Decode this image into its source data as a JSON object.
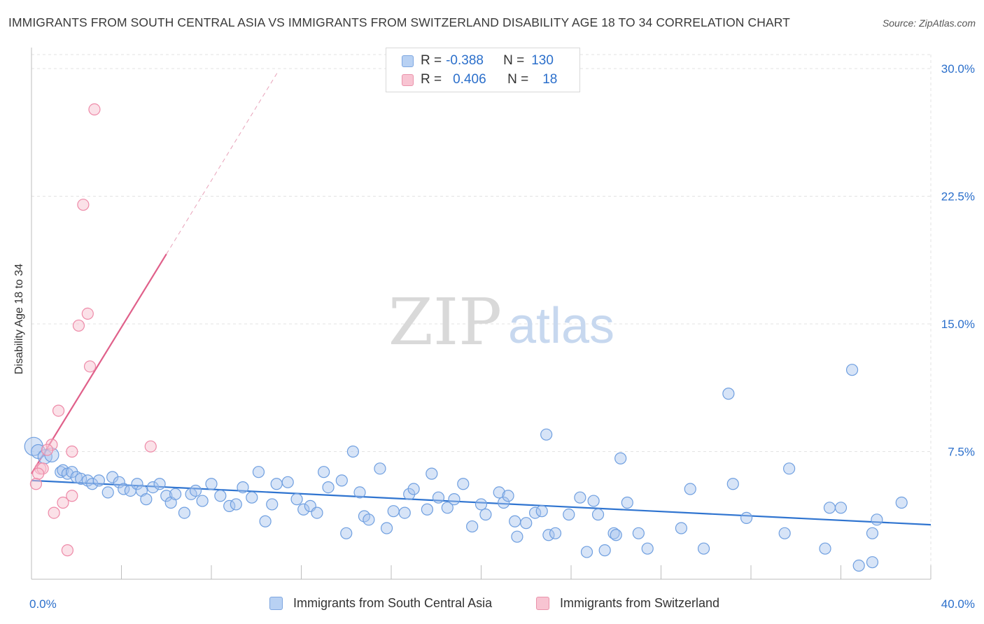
{
  "header": {
    "title": "IMMIGRANTS FROM SOUTH CENTRAL ASIA VS IMMIGRANTS FROM SWITZERLAND DISABILITY AGE 18 TO 34 CORRELATION CHART",
    "source": "Source: ZipAtlas.com"
  },
  "watermark": {
    "zip": "ZIP",
    "atlas": "atlas"
  },
  "legend": {
    "series": [
      {
        "r_label": "R =",
        "r_value": "-0.388",
        "n_label": "N =",
        "n_value": "130"
      },
      {
        "r_label": "R =",
        "r_value": "0.406",
        "n_label": "N =",
        "n_value": "18"
      }
    ]
  },
  "chart_data": {
    "type": "scatter",
    "title": "IMMIGRANTS FROM SOUTH CENTRAL ASIA VS IMMIGRANTS FROM SWITZERLAND DISABILITY AGE 18 TO 34 CORRELATION CHART",
    "xlabel": "",
    "ylabel": "Disability Age 18 to 34",
    "xlim": [
      0,
      40
    ],
    "ylim": [
      0,
      30
    ],
    "x_tick_labels": [
      "0.0%",
      "40.0%"
    ],
    "y_ticks": [
      7.5,
      15.0,
      22.5,
      30.0
    ],
    "y_tick_labels": [
      "7.5%",
      "15.0%",
      "22.5%",
      "30.0%"
    ],
    "grid": true,
    "legend_position": "bottom",
    "colors": {
      "blue": "#6f9fe0",
      "blue_line": "#2f74d0",
      "pink": "#ee8aa8",
      "pink_line": "#e0608a",
      "tick_text": "#2b6fcb"
    },
    "series": [
      {
        "name": "Immigrants from South Central Asia",
        "color": "#6f9fe0",
        "trend": [
          [
            0,
            5.8
          ],
          [
            40,
            3.2
          ]
        ],
        "points": [
          [
            0.1,
            7.8
          ],
          [
            0.3,
            7.5
          ],
          [
            0.6,
            7.2
          ],
          [
            0.9,
            7.3
          ],
          [
            1.3,
            6.3
          ],
          [
            1.4,
            6.4
          ],
          [
            1.6,
            6.2
          ],
          [
            1.8,
            6.3
          ],
          [
            2.0,
            6.0
          ],
          [
            2.2,
            5.9
          ],
          [
            2.5,
            5.8
          ],
          [
            2.7,
            5.6
          ],
          [
            3.0,
            5.8
          ],
          [
            3.4,
            5.1
          ],
          [
            3.6,
            6.0
          ],
          [
            3.9,
            5.7
          ],
          [
            4.1,
            5.3
          ],
          [
            4.4,
            5.2
          ],
          [
            4.7,
            5.6
          ],
          [
            4.9,
            5.2
          ],
          [
            5.1,
            4.7
          ],
          [
            5.4,
            5.4
          ],
          [
            5.7,
            5.6
          ],
          [
            6.0,
            4.9
          ],
          [
            6.2,
            4.5
          ],
          [
            6.4,
            5.0
          ],
          [
            6.8,
            3.9
          ],
          [
            7.1,
            5.0
          ],
          [
            7.3,
            5.2
          ],
          [
            7.6,
            4.6
          ],
          [
            8.0,
            5.6
          ],
          [
            8.4,
            4.9
          ],
          [
            8.8,
            4.3
          ],
          [
            9.1,
            4.4
          ],
          [
            9.4,
            5.4
          ],
          [
            9.8,
            4.8
          ],
          [
            10.1,
            6.3
          ],
          [
            10.4,
            3.4
          ],
          [
            10.7,
            4.4
          ],
          [
            10.9,
            5.6
          ],
          [
            11.4,
            5.7
          ],
          [
            11.8,
            4.7
          ],
          [
            12.1,
            4.1
          ],
          [
            12.4,
            4.3
          ],
          [
            12.7,
            3.9
          ],
          [
            13.0,
            6.3
          ],
          [
            13.2,
            5.4
          ],
          [
            13.8,
            5.8
          ],
          [
            14.0,
            2.7
          ],
          [
            14.3,
            7.5
          ],
          [
            14.6,
            5.1
          ],
          [
            14.8,
            3.7
          ],
          [
            15.0,
            3.5
          ],
          [
            15.5,
            6.5
          ],
          [
            15.8,
            3.0
          ],
          [
            16.1,
            4.0
          ],
          [
            16.6,
            3.9
          ],
          [
            16.8,
            5.0
          ],
          [
            17.0,
            5.3
          ],
          [
            17.6,
            4.1
          ],
          [
            17.8,
            6.2
          ],
          [
            18.1,
            4.8
          ],
          [
            18.5,
            4.2
          ],
          [
            18.8,
            4.7
          ],
          [
            19.2,
            5.6
          ],
          [
            19.6,
            3.1
          ],
          [
            20.0,
            4.4
          ],
          [
            20.2,
            3.8
          ],
          [
            20.8,
            5.1
          ],
          [
            21.0,
            4.5
          ],
          [
            21.2,
            4.9
          ],
          [
            21.5,
            3.4
          ],
          [
            21.6,
            2.5
          ],
          [
            22.0,
            3.3
          ],
          [
            22.4,
            3.9
          ],
          [
            22.7,
            4.0
          ],
          [
            22.9,
            8.5
          ],
          [
            23.0,
            2.6
          ],
          [
            23.3,
            2.7
          ],
          [
            23.9,
            3.8
          ],
          [
            24.4,
            4.8
          ],
          [
            24.7,
            1.6
          ],
          [
            25.0,
            4.6
          ],
          [
            25.2,
            3.8
          ],
          [
            25.5,
            1.7
          ],
          [
            25.9,
            2.7
          ],
          [
            26.0,
            2.6
          ],
          [
            26.2,
            7.1
          ],
          [
            26.5,
            4.5
          ],
          [
            27.0,
            2.7
          ],
          [
            27.4,
            1.8
          ],
          [
            28.9,
            3.0
          ],
          [
            29.3,
            5.3
          ],
          [
            29.9,
            1.8
          ],
          [
            31.2,
            5.6
          ],
          [
            31.0,
            10.9
          ],
          [
            31.8,
            3.6
          ],
          [
            33.5,
            2.7
          ],
          [
            33.7,
            6.5
          ],
          [
            35.3,
            1.8
          ],
          [
            35.5,
            4.2
          ],
          [
            36.0,
            4.2
          ],
          [
            36.5,
            12.3
          ],
          [
            36.8,
            0.8
          ],
          [
            37.4,
            2.7
          ],
          [
            37.4,
            1.0
          ],
          [
            37.6,
            3.5
          ],
          [
            38.7,
            4.5
          ]
        ]
      },
      {
        "name": "Immigrants from Switzerland",
        "color": "#ee8aa8",
        "trend": [
          [
            0,
            6.2
          ],
          [
            6.0,
            19.1
          ]
        ],
        "trend_dashed": [
          [
            6.0,
            19.1
          ],
          [
            11.0,
            29.9
          ]
        ],
        "points": [
          [
            2.8,
            27.6
          ],
          [
            2.3,
            22.0
          ],
          [
            2.5,
            15.6
          ],
          [
            2.1,
            14.9
          ],
          [
            2.6,
            12.5
          ],
          [
            1.2,
            9.9
          ],
          [
            5.3,
            7.8
          ],
          [
            0.9,
            7.9
          ],
          [
            1.8,
            7.5
          ],
          [
            0.4,
            6.5
          ],
          [
            0.5,
            6.5
          ],
          [
            0.3,
            6.2
          ],
          [
            0.2,
            5.6
          ],
          [
            1.8,
            4.9
          ],
          [
            1.4,
            4.5
          ],
          [
            1.0,
            3.9
          ],
          [
            1.6,
            1.7
          ],
          [
            0.7,
            7.6
          ]
        ]
      }
    ]
  }
}
